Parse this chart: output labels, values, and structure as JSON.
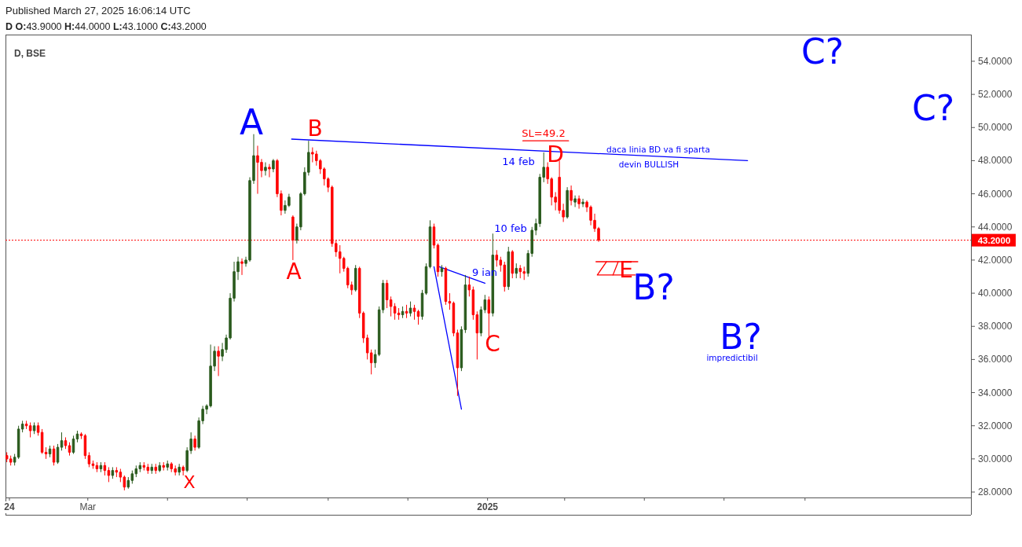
{
  "chart_data": {
    "type": "candlestick",
    "title": "D, BSE",
    "subtitle": "D  O:43.9000 H:44.0000 L:43.1000 C:43.2000",
    "x": [
      "2023-12-30",
      "2024-01-02",
      "2024-01-05",
      "2024-01-08",
      "2024-01-11",
      "2024-01-14",
      "2024-01-17",
      "2024-01-20",
      "2024-01-23",
      "2024-01-26",
      "2024-01-29",
      "2024-02-01",
      "2024-02-04",
      "2024-02-07",
      "2024-02-10",
      "2024-02-13",
      "2024-02-16",
      "2024-02-19",
      "2024-02-22",
      "2024-02-25",
      "2024-02-28",
      "2024-03-02",
      "2024-03-05",
      "2024-03-08",
      "2024-03-11",
      "2024-03-14",
      "2024-03-17",
      "2024-03-20",
      "2024-03-23",
      "2024-03-26",
      "2024-03-29",
      "2024-04-01",
      "2024-04-04",
      "2024-04-07",
      "2024-04-10",
      "2024-04-13",
      "2024-04-16",
      "2024-04-19",
      "2024-04-22",
      "2024-04-25",
      "2024-04-28",
      "2024-05-01",
      "2024-05-04",
      "2024-05-07",
      "2024-05-10",
      "2024-05-13",
      "2024-05-16",
      "2024-05-19",
      "2024-05-22",
      "2024-05-25",
      "2024-05-28",
      "2024-05-31",
      "2024-06-03",
      "2024-06-06",
      "2024-06-09",
      "2024-06-12",
      "2024-06-15",
      "2024-06-18",
      "2024-06-21",
      "2024-06-24",
      "2024-06-27",
      "2024-06-30",
      "2024-07-03",
      "2024-07-06",
      "2024-07-09",
      "2024-07-12",
      "2024-07-15",
      "2024-07-18",
      "2024-07-21",
      "2024-07-24",
      "2024-07-27",
      "2024-07-30",
      "2024-08-02",
      "2024-08-05",
      "2024-08-08",
      "2024-08-11",
      "2024-08-14",
      "2024-08-17",
      "2024-08-20",
      "2024-08-23",
      "2024-08-26",
      "2024-08-29",
      "2024-09-01",
      "2024-09-04",
      "2024-09-07",
      "2024-09-10",
      "2024-09-13",
      "2024-09-16",
      "2024-09-19",
      "2024-09-22",
      "2024-09-25",
      "2024-09-28",
      "2024-10-01",
      "2024-10-04",
      "2024-10-07",
      "2024-10-10",
      "2024-10-13",
      "2024-10-16",
      "2024-10-19",
      "2024-10-22",
      "2024-10-25",
      "2024-10-28",
      "2024-10-31",
      "2024-11-03",
      "2024-11-06",
      "2024-11-09",
      "2024-11-12",
      "2024-11-15",
      "2024-11-18",
      "2024-11-21",
      "2024-11-24",
      "2024-11-27",
      "2024-11-30",
      "2024-12-03",
      "2024-12-06",
      "2024-12-09",
      "2024-12-12",
      "2024-12-15",
      "2024-12-18",
      "2024-12-21",
      "2024-12-24",
      "2024-12-27",
      "2024-12-30",
      "2025-01-02",
      "2025-01-05",
      "2025-01-08",
      "2025-01-11",
      "2025-01-14",
      "2025-01-17",
      "2025-01-20",
      "2025-01-23",
      "2025-01-26",
      "2025-01-29",
      "2025-02-01",
      "2025-02-04",
      "2025-02-07",
      "2025-02-10",
      "2025-02-13",
      "2025-02-16",
      "2025-02-19",
      "2025-02-22",
      "2025-02-25",
      "2025-02-28",
      "2025-03-03",
      "2025-03-06",
      "2025-03-09",
      "2025-03-12",
      "2025-03-15",
      "2025-03-18",
      "2025-03-21",
      "2025-03-24",
      "2025-03-27"
    ],
    "ohlc": [
      [
        30.2,
        30.4,
        29.8,
        30.0
      ],
      [
        30.0,
        30.2,
        29.6,
        29.8
      ],
      [
        29.8,
        30.3,
        29.6,
        30.1
      ],
      [
        30.1,
        32.0,
        30.0,
        31.8
      ],
      [
        31.8,
        32.3,
        31.6,
        32.1
      ],
      [
        32.1,
        32.3,
        31.8,
        32.0
      ],
      [
        32.0,
        32.2,
        31.3,
        31.7
      ],
      [
        31.7,
        32.2,
        31.5,
        32.0
      ],
      [
        32.0,
        32.2,
        31.4,
        31.6
      ],
      [
        31.6,
        31.8,
        30.3,
        30.4
      ],
      [
        30.4,
        30.7,
        30.0,
        30.3
      ],
      [
        30.3,
        30.8,
        30.1,
        30.6
      ],
      [
        30.6,
        30.8,
        29.6,
        29.8
      ],
      [
        29.8,
        30.9,
        29.7,
        30.7
      ],
      [
        30.7,
        31.6,
        30.5,
        31.1
      ],
      [
        31.1,
        31.3,
        30.6,
        30.8
      ],
      [
        30.8,
        31.0,
        30.2,
        30.4
      ],
      [
        30.4,
        31.4,
        30.3,
        31.2
      ],
      [
        31.2,
        31.7,
        31.0,
        31.5
      ],
      [
        31.5,
        31.6,
        31.2,
        31.4
      ],
      [
        31.4,
        31.5,
        30.0,
        30.2
      ],
      [
        30.2,
        30.4,
        29.5,
        29.7
      ],
      [
        29.7,
        29.9,
        29.4,
        29.6
      ],
      [
        29.6,
        29.8,
        29.2,
        29.4
      ],
      [
        29.4,
        29.8,
        29.2,
        29.6
      ],
      [
        29.6,
        29.8,
        29.0,
        29.3
      ],
      [
        29.3,
        29.5,
        28.6,
        29.0
      ],
      [
        29.0,
        29.5,
        28.8,
        29.3
      ],
      [
        29.3,
        29.5,
        28.9,
        29.2
      ],
      [
        29.2,
        29.4,
        28.6,
        28.9
      ],
      [
        28.9,
        29.0,
        28.1,
        28.3
      ],
      [
        28.3,
        28.9,
        28.2,
        28.7
      ],
      [
        28.7,
        29.3,
        28.5,
        29.1
      ],
      [
        29.1,
        29.6,
        28.9,
        29.4
      ],
      [
        29.4,
        29.8,
        29.2,
        29.6
      ],
      [
        29.6,
        29.8,
        29.3,
        29.5
      ],
      [
        29.5,
        29.7,
        29.1,
        29.3
      ],
      [
        29.3,
        29.7,
        29.1,
        29.5
      ],
      [
        29.5,
        29.7,
        29.1,
        29.3
      ],
      [
        29.3,
        29.8,
        29.2,
        29.6
      ],
      [
        29.6,
        29.8,
        29.3,
        29.5
      ],
      [
        29.5,
        29.9,
        29.3,
        29.7
      ],
      [
        29.7,
        29.8,
        29.2,
        29.4
      ],
      [
        29.4,
        29.6,
        29.0,
        29.2
      ],
      [
        29.2,
        29.7,
        29.0,
        29.5
      ],
      [
        29.5,
        29.6,
        29.0,
        29.3
      ],
      [
        29.3,
        30.7,
        29.2,
        30.5
      ],
      [
        30.5,
        31.6,
        30.3,
        31.2
      ],
      [
        31.2,
        31.4,
        30.5,
        30.7
      ],
      [
        30.7,
        32.5,
        30.6,
        32.3
      ],
      [
        32.3,
        33.2,
        32.1,
        33.0
      ],
      [
        33.0,
        33.3,
        32.7,
        33.2
      ],
      [
        33.2,
        36.9,
        33.1,
        35.6
      ],
      [
        35.6,
        36.8,
        35.3,
        36.5
      ],
      [
        36.5,
        36.8,
        35.0,
        36.2
      ],
      [
        36.2,
        37.0,
        35.9,
        36.6
      ],
      [
        36.6,
        37.5,
        36.4,
        37.3
      ],
      [
        37.3,
        40.0,
        37.2,
        39.7
      ],
      [
        39.7,
        41.9,
        39.5,
        41.3
      ],
      [
        41.3,
        42.2,
        40.8,
        41.9
      ],
      [
        41.9,
        42.1,
        41.1,
        41.8
      ],
      [
        41.8,
        42.2,
        41.6,
        42.0
      ],
      [
        42.0,
        47.0,
        41.9,
        46.8
      ],
      [
        46.8,
        49.6,
        46.6,
        48.3
      ],
      [
        48.3,
        48.9,
        46.0,
        47.9
      ],
      [
        47.9,
        48.1,
        47.0,
        47.4
      ],
      [
        47.4,
        47.9,
        47.1,
        47.6
      ],
      [
        47.6,
        47.8,
        47.0,
        47.5
      ],
      [
        47.5,
        48.1,
        47.3,
        48.0
      ],
      [
        48.0,
        48.1,
        45.8,
        46.0
      ],
      [
        46.0,
        46.2,
        44.7,
        45.0
      ],
      [
        45.0,
        45.6,
        44.8,
        45.3
      ],
      [
        45.3,
        46.0,
        45.2,
        45.8
      ],
      [
        44.6,
        44.7,
        42.0,
        43.2
      ],
      [
        43.2,
        44.2,
        43.0,
        44.0
      ],
      [
        44.0,
        46.1,
        43.8,
        46.0
      ],
      [
        46.0,
        47.6,
        45.9,
        47.3
      ],
      [
        47.3,
        49.2,
        47.1,
        48.5
      ],
      [
        48.5,
        48.8,
        47.9,
        48.4
      ],
      [
        48.4,
        48.6,
        47.7,
        48.0
      ],
      [
        48.0,
        48.1,
        47.2,
        47.5
      ],
      [
        47.5,
        47.6,
        46.5,
        46.9
      ],
      [
        46.9,
        47.0,
        46.1,
        46.4
      ],
      [
        46.4,
        46.5,
        42.8,
        43.0
      ],
      [
        43.0,
        43.2,
        42.2,
        42.5
      ],
      [
        42.5,
        42.9,
        41.2,
        42.1
      ],
      [
        42.1,
        42.2,
        41.3,
        41.5
      ],
      [
        41.5,
        41.6,
        40.3,
        40.5
      ],
      [
        40.5,
        40.7,
        39.9,
        40.2
      ],
      [
        40.2,
        41.7,
        40.1,
        41.5
      ],
      [
        41.5,
        41.6,
        38.5,
        38.8
      ],
      [
        38.8,
        38.9,
        37.0,
        37.3
      ],
      [
        37.3,
        37.5,
        36.0,
        36.4
      ],
      [
        36.4,
        36.6,
        35.1,
        35.8
      ],
      [
        35.8,
        36.6,
        35.5,
        36.3
      ],
      [
        36.3,
        39.2,
        36.2,
        39.0
      ],
      [
        39.0,
        40.8,
        38.8,
        40.6
      ],
      [
        40.6,
        40.8,
        39.1,
        39.6
      ],
      [
        39.6,
        39.8,
        38.6,
        39.2
      ],
      [
        39.2,
        39.4,
        38.4,
        38.8
      ],
      [
        38.8,
        39.1,
        38.4,
        38.7
      ],
      [
        38.7,
        39.2,
        38.5,
        38.9
      ],
      [
        38.9,
        39.3,
        38.5,
        38.8
      ],
      [
        38.8,
        39.5,
        38.6,
        39.1
      ],
      [
        39.1,
        39.3,
        38.4,
        38.9
      ],
      [
        38.9,
        39.0,
        38.1,
        38.6
      ],
      [
        38.6,
        40.2,
        38.4,
        40.0
      ],
      [
        40.0,
        41.8,
        39.9,
        41.6
      ],
      [
        41.6,
        44.4,
        41.5,
        44.0
      ],
      [
        44.0,
        44.2,
        42.7,
        42.9
      ],
      [
        42.9,
        43.0,
        41.0,
        41.3
      ],
      [
        41.3,
        41.7,
        41.0,
        41.5
      ],
      [
        41.5,
        41.6,
        39.3,
        39.5
      ],
      [
        39.5,
        40.0,
        39.0,
        39.4
      ],
      [
        39.4,
        39.5,
        37.4,
        37.6
      ],
      [
        37.6,
        37.8,
        33.8,
        35.5
      ],
      [
        35.5,
        38.0,
        35.3,
        37.8
      ],
      [
        37.8,
        41.1,
        37.6,
        40.5
      ],
      [
        40.5,
        41.0,
        39.8,
        40.2
      ],
      [
        40.2,
        40.4,
        38.4,
        38.7
      ],
      [
        38.7,
        38.9,
        36.0,
        37.6
      ],
      [
        37.6,
        39.2,
        37.4,
        39.0
      ],
      [
        39.0,
        39.9,
        38.8,
        39.6
      ],
      [
        39.6,
        39.8,
        37.4,
        38.8
      ],
      [
        38.8,
        43.6,
        38.6,
        42.3
      ],
      [
        42.3,
        42.6,
        41.6,
        42.0
      ],
      [
        42.0,
        42.2,
        41.3,
        41.7
      ],
      [
        41.7,
        41.9,
        40.1,
        40.4
      ],
      [
        40.4,
        42.8,
        40.2,
        42.5
      ],
      [
        42.5,
        42.6,
        40.9,
        41.2
      ],
      [
        41.2,
        41.8,
        40.9,
        41.5
      ],
      [
        41.5,
        41.7,
        40.9,
        41.3
      ],
      [
        41.3,
        41.6,
        40.8,
        41.2
      ],
      [
        41.2,
        42.6,
        41.0,
        42.4
      ],
      [
        42.4,
        44.0,
        42.2,
        43.8
      ],
      [
        43.8,
        44.5,
        43.5,
        44.2
      ],
      [
        44.2,
        47.2,
        44.0,
        47.0
      ],
      [
        47.0,
        48.5,
        46.7,
        47.6
      ],
      [
        47.6,
        47.9,
        46.6,
        46.9
      ],
      [
        46.9,
        47.0,
        45.3,
        45.8
      ],
      [
        45.8,
        46.1,
        45.0,
        45.5
      ],
      [
        47.0,
        48.0,
        44.8,
        45.0
      ],
      [
        45.0,
        45.4,
        44.3,
        44.6
      ],
      [
        44.6,
        46.4,
        44.5,
        46.2
      ],
      [
        46.2,
        46.5,
        45.3,
        45.6
      ],
      [
        45.5,
        45.9,
        45.2,
        45.7
      ],
      [
        45.7,
        45.9,
        45.1,
        45.4
      ],
      [
        45.4,
        45.7,
        45.2,
        45.5
      ],
      [
        45.5,
        45.6,
        44.9,
        45.2
      ],
      [
        45.2,
        45.3,
        44.1,
        44.4
      ],
      [
        44.4,
        44.8,
        43.7,
        43.9
      ],
      [
        43.9,
        44.0,
        43.1,
        43.2
      ]
    ],
    "colors": [
      "#ff0000",
      "#ff0000",
      "#2b5b1e",
      "#2b5b1e",
      "#2b5b1e",
      "#ff0000",
      "#ff0000",
      "#2b5b1e",
      "#ff0000",
      "#ff0000",
      "#ff0000",
      "#2b5b1e",
      "#ff0000",
      "#2b5b1e",
      "#2b5b1e",
      "#ff0000",
      "#ff0000",
      "#2b5b1e",
      "#2b5b1e",
      "#ff0000",
      "#ff0000",
      "#ff0000",
      "#ff0000",
      "#ff0000",
      "#2b5b1e",
      "#ff0000",
      "#ff0000",
      "#2b5b1e",
      "#ff0000",
      "#ff0000",
      "#ff0000",
      "#2b5b1e",
      "#2b5b1e",
      "#2b5b1e",
      "#2b5b1e",
      "#ff0000",
      "#ff0000",
      "#2b5b1e",
      "#ff0000",
      "#2b5b1e",
      "#ff0000",
      "#2b5b1e",
      "#ff0000",
      "#ff0000",
      "#2b5b1e",
      "#ff0000",
      "#2b5b1e",
      "#2b5b1e",
      "#ff0000",
      "#2b5b1e",
      "#2b5b1e",
      "#2b5b1e",
      "#2b5b1e",
      "#2b5b1e",
      "#ff0000",
      "#2b5b1e",
      "#2b5b1e",
      "#2b5b1e",
      "#2b5b1e",
      "#2b5b1e",
      "#ff0000",
      "#2b5b1e",
      "#2b5b1e",
      "#2b5b1e",
      "#ff0000",
      "#ff0000",
      "#2b5b1e",
      "#ff0000",
      "#2b5b1e",
      "#ff0000",
      "#ff0000",
      "#2b5b1e",
      "#2b5b1e",
      "#ff0000",
      "#2b5b1e",
      "#2b5b1e",
      "#2b5b1e",
      "#2b5b1e",
      "#ff0000",
      "#ff0000",
      "#ff0000",
      "#ff0000",
      "#ff0000",
      "#ff0000",
      "#ff0000",
      "#ff0000",
      "#ff0000",
      "#ff0000",
      "#ff0000",
      "#2b5b1e",
      "#ff0000",
      "#ff0000",
      "#ff0000",
      "#ff0000",
      "#2b5b1e",
      "#2b5b1e",
      "#2b5b1e",
      "#ff0000",
      "#ff0000",
      "#ff0000",
      "#ff0000",
      "#2b5b1e",
      "#ff0000",
      "#2b5b1e",
      "#ff0000",
      "#ff0000",
      "#2b5b1e",
      "#2b5b1e",
      "#2b5b1e",
      "#ff0000",
      "#ff0000",
      "#2b5b1e",
      "#ff0000",
      "#ff0000",
      "#ff0000",
      "#ff0000",
      "#2b5b1e",
      "#2b5b1e",
      "#ff0000",
      "#ff0000",
      "#ff0000",
      "#2b5b1e",
      "#2b5b1e",
      "#ff0000",
      "#2b5b1e",
      "#ff0000",
      "#ff0000",
      "#ff0000",
      "#2b5b1e",
      "#ff0000",
      "#2b5b1e",
      "#ff0000",
      "#ff0000",
      "#2b5b1e",
      "#2b5b1e",
      "#2b5b1e",
      "#2b5b1e",
      "#2b5b1e",
      "#ff0000",
      "#ff0000",
      "#ff0000",
      "#ff0000",
      "#ff0000",
      "#2b5b1e",
      "#ff0000",
      "#2b5b1e",
      "#ff0000",
      "#2b5b1e",
      "#ff0000",
      "#ff0000",
      "#ff0000",
      "#ff0000"
    ],
    "series": [
      {
        "type": "line",
        "x": [
          "2024-08-04",
          "2025-07-19"
        ],
        "values": [
          49.3,
          48.0
        ],
        "color": "#0000ff"
      },
      {
        "type": "line",
        "x": [
          "2024-11-21",
          "2024-12-12"
        ],
        "values": [
          41.6,
          33.0
        ],
        "color": "#0000ff"
      },
      {
        "type": "line",
        "x": [
          "2024-11-25",
          "2024-12-30"
        ],
        "values": [
          41.6,
          40.6
        ],
        "color": "#0000ff"
      },
      {
        "type": "line",
        "x": [
          "2025-01-28",
          "2025-03-04"
        ],
        "values": [
          49.2,
          49.2
        ],
        "color": "#ff0000"
      },
      {
        "type": "line",
        "x": [
          "2025-04-02",
          "2025-03-26",
          "2025-04-24"
        ],
        "values": [
          41.9,
          41.1,
          41.1
        ],
        "color": "#ff0000"
      },
      {
        "type": "line",
        "x": [
          "2025-03-25",
          "2025-04-26"
        ],
        "values": [
          41.9,
          41.9
        ],
        "color": "#ff0000"
      },
      {
        "type": "line",
        "x": [
          "2025-04-07",
          "2025-04-11"
        ],
        "values": [
          41.1,
          41.9
        ],
        "color": "#ff0000"
      }
    ],
    "xlim": [
      "2023-12-29",
      "2026-01-06"
    ],
    "xticks": [
      {
        "value": "2024-01-01",
        "label": "24"
      },
      {
        "value": "2024-03-01",
        "label": "Mar"
      },
      {
        "value": "2024-05-01",
        "label": null
      },
      {
        "value": "2024-07-01",
        "label": null
      },
      {
        "value": "2024-09-01",
        "label": null
      },
      {
        "value": "2024-11-01",
        "label": null
      },
      {
        "value": "2025-01-01",
        "label": "2025"
      },
      {
        "value": "2025-03-01",
        "label": null
      },
      {
        "value": "2025-05-01",
        "label": null
      },
      {
        "value": "2025-07-01",
        "label": null
      },
      {
        "value": "2025-09-01",
        "label": null
      }
    ],
    "ylim": [
      27.67,
      55.61
    ],
    "yticks": [
      {
        "value": 28,
        "label": "28.0000"
      },
      {
        "value": 30,
        "label": "30.0000"
      },
      {
        "value": 32,
        "label": "32.0000"
      },
      {
        "value": 34,
        "label": "34.0000"
      },
      {
        "value": 36,
        "label": "36.0000"
      },
      {
        "value": 38,
        "label": "38.0000"
      },
      {
        "value": 40,
        "label": "40.0000"
      },
      {
        "value": 42,
        "label": "42.0000"
      },
      {
        "value": 44,
        "label": "44.0000"
      },
      {
        "value": 46,
        "label": "46.0000"
      },
      {
        "value": 48,
        "label": "48.0000"
      },
      {
        "value": 50,
        "label": "50.0000"
      },
      {
        "value": 52,
        "label": "52.0000"
      },
      {
        "value": 54,
        "label": "54.0000"
      }
    ],
    "ref_lines": [
      {
        "axis": "y",
        "value": 43.2,
        "label": "43.2000",
        "color": "#ff0000",
        "line_style": "dotted"
      }
    ],
    "annotations": [
      "Published March 27, 2025 16:06:14 UTC",
      "A",
      "B",
      "A",
      "X",
      "C",
      "D",
      "E",
      "SL=49.2",
      "14 feb",
      "10 feb",
      "9 ian",
      "daca linia BD va fi sparta",
      "devin BULLISH",
      "B?",
      "B?",
      "impredictibil",
      "C?",
      "C?"
    ]
  }
}
